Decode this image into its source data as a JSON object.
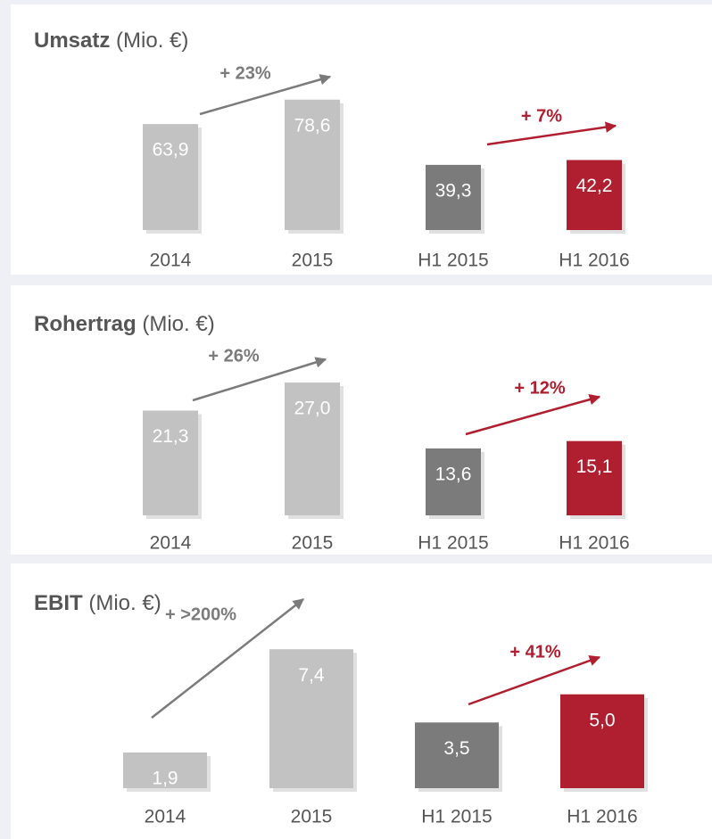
{
  "chart_data": [
    {
      "type": "bar",
      "title": "Umsatz",
      "subtitle": "(Mio. €)",
      "categories": [
        "2014",
        "2015",
        "H1 2015",
        "H1 2016"
      ],
      "values": [
        63.9,
        78.6,
        39.3,
        42.2
      ],
      "value_labels": [
        "63,9",
        "78,6",
        "39,3",
        "42,2"
      ],
      "colors": [
        "#c2c2c2",
        "#c2c2c2",
        "#7b7b7b",
        "#b01f30"
      ],
      "ylim": [
        0,
        86
      ],
      "annotations": [
        {
          "text": "+ 23%",
          "color": "#7b7b7b"
        },
        {
          "text": "+ 7%",
          "color": "#b01f30"
        }
      ]
    },
    {
      "type": "bar",
      "title": "Rohertrag",
      "subtitle": "(Mio. €)",
      "categories": [
        "2014",
        "2015",
        "H1 2015",
        "H1 2016"
      ],
      "values": [
        21.3,
        27.0,
        13.6,
        15.1
      ],
      "value_labels": [
        "21,3",
        "27,0",
        "13,6",
        "15,1"
      ],
      "colors": [
        "#c2c2c2",
        "#c2c2c2",
        "#7b7b7b",
        "#b01f30"
      ],
      "ylim": [
        0,
        29
      ],
      "annotations": [
        {
          "text": "+ 26%",
          "color": "#7b7b7b"
        },
        {
          "text": "+ 12%",
          "color": "#b01f30"
        }
      ]
    },
    {
      "type": "bar",
      "title": "EBIT",
      "subtitle": "(Mio. €)",
      "categories": [
        "2014",
        "2015",
        "H1 2015",
        "H1 2016"
      ],
      "values": [
        1.9,
        7.4,
        3.5,
        5.0
      ],
      "value_labels": [
        "1,9",
        "7,4",
        "3,5",
        "5,0"
      ],
      "colors": [
        "#c2c2c2",
        "#c2c2c2",
        "#7b7b7b",
        "#b01f30"
      ],
      "ylim": [
        0,
        7.6
      ],
      "annotations": [
        {
          "text": "+ >200%",
          "color": "#7b7b7b"
        },
        {
          "text": "+ 41%",
          "color": "#b01f30"
        }
      ]
    }
  ]
}
